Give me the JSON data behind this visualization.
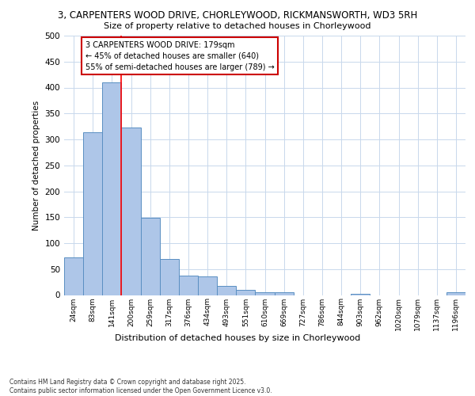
{
  "title_line1": "3, CARPENTERS WOOD DRIVE, CHORLEYWOOD, RICKMANSWORTH, WD3 5RH",
  "title_line2": "Size of property relative to detached houses in Chorleywood",
  "xlabel": "Distribution of detached houses by size in Chorleywood",
  "ylabel": "Number of detached properties",
  "categories": [
    "24sqm",
    "83sqm",
    "141sqm",
    "200sqm",
    "259sqm",
    "317sqm",
    "376sqm",
    "434sqm",
    "493sqm",
    "551sqm",
    "610sqm",
    "669sqm",
    "727sqm",
    "786sqm",
    "844sqm",
    "903sqm",
    "962sqm",
    "1020sqm",
    "1079sqm",
    "1137sqm",
    "1196sqm"
  ],
  "values": [
    72,
    313,
    410,
    323,
    149,
    69,
    37,
    36,
    18,
    10,
    5,
    6,
    0,
    0,
    0,
    3,
    0,
    0,
    0,
    0,
    5
  ],
  "bar_color": "#aec6e8",
  "bar_edge_color": "#5a8fc2",
  "red_line_x": 2.5,
  "annotation_text": "3 CARPENTERS WOOD DRIVE: 179sqm\n← 45% of detached houses are smaller (640)\n55% of semi-detached houses are larger (789) →",
  "annotation_box_color": "#ffffff",
  "annotation_edge_color": "#cc0000",
  "footer_text": "Contains HM Land Registry data © Crown copyright and database right 2025.\nContains public sector information licensed under the Open Government Licence v3.0.",
  "background_color": "#ffffff",
  "grid_color": "#c8d8ec",
  "ylim": [
    0,
    500
  ],
  "yticks": [
    0,
    50,
    100,
    150,
    200,
    250,
    300,
    350,
    400,
    450,
    500
  ]
}
